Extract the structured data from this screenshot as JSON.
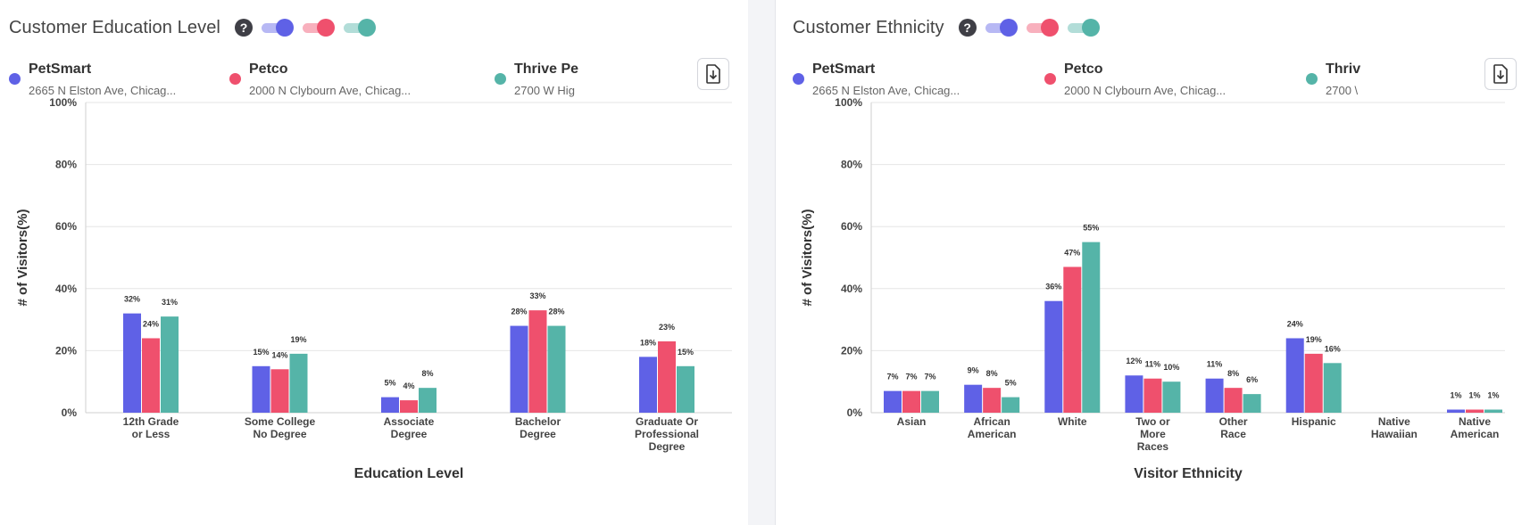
{
  "panels": [
    {
      "title": "Customer Education Level",
      "help_icon": "?",
      "download_icon": "download-icon",
      "legend": [
        {
          "name": "PetSmart",
          "address": "2665 N Elston Ave, Chicag..."
        },
        {
          "name": "Petco",
          "address": "2000 N Clybourn Ave, Chicag..."
        },
        {
          "name": "Thrive Pe",
          "address": "2700 W Hig"
        }
      ]
    },
    {
      "title": "Customer Ethnicity",
      "help_icon": "?",
      "download_icon": "download-icon",
      "legend": [
        {
          "name": "PetSmart",
          "address": "2665 N Elston Ave, Chicag..."
        },
        {
          "name": "Petco",
          "address": "2000 N Clybourn Ave, Chicag..."
        },
        {
          "name": "Thriv",
          "address": "2700 \\"
        }
      ]
    }
  ],
  "colors": {
    "PetSmart": "#5f61e6",
    "Petco": "#ef506d",
    "Thrive": "#55b4a8"
  },
  "chart_data": [
    {
      "type": "bar",
      "xlabel": "Education Level",
      "ylabel": "# of Visitors(%)",
      "ylim": [
        0,
        100
      ],
      "yticks": [
        "0%",
        "20%",
        "40%",
        "60%",
        "80%",
        "100%"
      ],
      "grid": true,
      "categories": [
        [
          "12th Grade",
          "or Less"
        ],
        [
          "Some College",
          "No Degree"
        ],
        [
          "Associate",
          "Degree"
        ],
        [
          "Bachelor",
          "Degree"
        ],
        [
          "Graduate Or",
          "Professional",
          "Degree"
        ]
      ],
      "series": [
        {
          "name": "PetSmart",
          "values": [
            32,
            15,
            5,
            28,
            18
          ]
        },
        {
          "name": "Petco",
          "values": [
            24,
            14,
            4,
            33,
            23
          ]
        },
        {
          "name": "Thrive Pe",
          "values": [
            31,
            19,
            8,
            28,
            15
          ]
        }
      ],
      "data_labels": [
        [
          "32%",
          "15%",
          "5%",
          "28%",
          "18%"
        ],
        [
          "24%",
          "14%",
          "4%",
          "33%",
          "23%"
        ],
        [
          "31%",
          "19%",
          "8%",
          "28%",
          "15%"
        ]
      ]
    },
    {
      "type": "bar",
      "xlabel": "Visitor Ethnicity",
      "ylabel": "# of Visitors(%)",
      "ylim": [
        0,
        100
      ],
      "yticks": [
        "0%",
        "20%",
        "40%",
        "60%",
        "80%",
        "100%"
      ],
      "grid": true,
      "categories": [
        [
          "Asian"
        ],
        [
          "African",
          "American"
        ],
        [
          "White"
        ],
        [
          "Two or",
          "More",
          "Races"
        ],
        [
          "Other",
          "Race"
        ],
        [
          "Hispanic"
        ],
        [
          "Native",
          "Hawaiian"
        ],
        [
          "Native",
          "American"
        ]
      ],
      "series": [
        {
          "name": "PetSmart",
          "values": [
            7,
            9,
            36,
            12,
            11,
            24,
            0,
            1
          ]
        },
        {
          "name": "Petco",
          "values": [
            7,
            8,
            47,
            11,
            8,
            19,
            0,
            1
          ]
        },
        {
          "name": "Thriv",
          "values": [
            7,
            5,
            55,
            10,
            6,
            16,
            0,
            1
          ]
        }
      ],
      "data_labels": [
        [
          "7%",
          "9%",
          "36%",
          "12%",
          "11%",
          "24%",
          "",
          "1%"
        ],
        [
          "7%",
          "8%",
          "47%",
          "11%",
          "8%",
          "19%",
          "",
          "1%"
        ],
        [
          "7%",
          "5%",
          "55%",
          "10%",
          "6%",
          "16%",
          "",
          "1%"
        ]
      ]
    }
  ]
}
